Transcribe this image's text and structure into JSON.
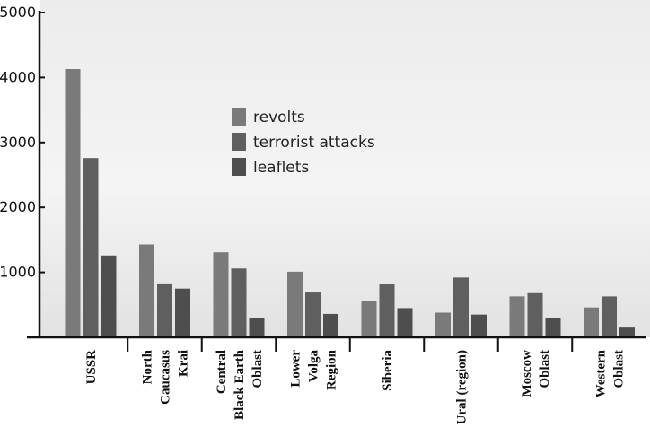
{
  "chart_data": {
    "type": "bar",
    "title": "",
    "xlabel": "",
    "ylabel": "",
    "ylim": [
      0,
      5000
    ],
    "yticks": [
      1000,
      2000,
      3000,
      4000,
      5000
    ],
    "categories": [
      [
        "USSR"
      ],
      [
        "North",
        "Caucasus",
        "Krai"
      ],
      [
        "Central",
        "Black Earth",
        "Oblast"
      ],
      [
        "Lower",
        "Volga",
        "Region"
      ],
      [
        "Siberia"
      ],
      [
        "Ural (region)"
      ],
      [
        "Moscow",
        "Oblast"
      ],
      [
        "Western",
        "Oblast"
      ]
    ],
    "series": [
      {
        "name": "revolts",
        "color": "#7a7a7a",
        "values": [
          4130,
          1430,
          1310,
          1010,
          560,
          380,
          630,
          460
        ]
      },
      {
        "name": "terrorist attacks",
        "color": "#5f5f5f",
        "values": [
          2760,
          830,
          1060,
          690,
          820,
          920,
          680,
          630
        ]
      },
      {
        "name": "leaflets",
        "color": "#4e4e4e",
        "values": [
          1260,
          750,
          300,
          360,
          450,
          350,
          300,
          150
        ]
      }
    ],
    "legend_position": "top-center",
    "grid": false
  }
}
